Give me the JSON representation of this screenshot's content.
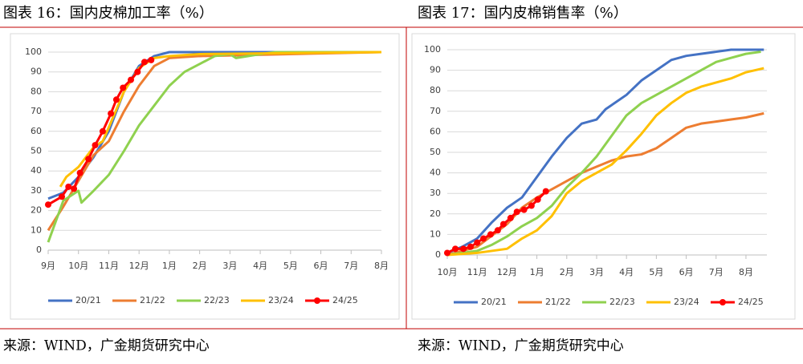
{
  "chart_data": [
    {
      "type": "line",
      "title": "图表 16：国内皮棉加工率（%）",
      "source": "来源：WIND，广金期货研究中心",
      "xlim": [
        0,
        11
      ],
      "ylim": [
        0,
        100
      ],
      "xticks": [
        {
          "value": 0,
          "label": "9月"
        },
        {
          "value": 1,
          "label": "10月"
        },
        {
          "value": 2,
          "label": "11月"
        },
        {
          "value": 3,
          "label": "12月"
        },
        {
          "value": 4,
          "label": "1月"
        },
        {
          "value": 5,
          "label": "2月"
        },
        {
          "value": 6,
          "label": "3月"
        },
        {
          "value": 7,
          "label": "4月"
        },
        {
          "value": 8,
          "label": "5月"
        },
        {
          "value": 9,
          "label": "6月"
        },
        {
          "value": 10,
          "label": "7月"
        },
        {
          "value": 11,
          "label": "8月"
        }
      ],
      "yticks": [
        0,
        10,
        20,
        30,
        40,
        50,
        60,
        70,
        80,
        90,
        100
      ],
      "grid": true,
      "series": [
        {
          "name": "20/21",
          "color": "#4472c4",
          "x": [
            0,
            0.5,
            1,
            1.5,
            2,
            2.5,
            3,
            3.5,
            4,
            11
          ],
          "values": [
            26,
            29,
            37,
            47,
            60,
            80,
            93,
            98,
            100,
            100
          ]
        },
        {
          "name": "21/22",
          "color": "#ed7d31",
          "x": [
            0,
            0.5,
            1,
            1.5,
            2,
            2.5,
            3,
            3.5,
            4,
            5,
            11
          ],
          "values": [
            10,
            22,
            35,
            48,
            55,
            70,
            83,
            93,
            97,
            98,
            100
          ]
        },
        {
          "name": "22/23",
          "color": "#8fd14f",
          "x": [
            0,
            0.5,
            1,
            1.1,
            1.5,
            2,
            2.5,
            3,
            3.5,
            4,
            4.5,
            5,
            5.5,
            6,
            6.2,
            7,
            7.5,
            11
          ],
          "values": [
            4,
            25,
            30,
            24,
            30,
            38,
            50,
            63,
            73,
            83,
            90,
            94,
            98,
            99,
            97,
            99,
            100,
            100
          ]
        },
        {
          "name": "23/24",
          "color": "#ffc000",
          "x": [
            0.4,
            0.6,
            1,
            1.5,
            1.8,
            2,
            2.5,
            3,
            3.5,
            4,
            5,
            11
          ],
          "values": [
            32,
            37,
            42,
            52,
            55,
            62,
            80,
            92,
            97,
            98,
            99,
            100
          ]
        },
        {
          "name": "24/25",
          "color": "#ff0000",
          "markers": true,
          "x": [
            0,
            0.45,
            0.67,
            0.85,
            1.05,
            1.33,
            1.55,
            1.8,
            2.07,
            2.25,
            2.47,
            2.73,
            2.95,
            3.18,
            3.4
          ],
          "values": [
            23,
            27,
            32,
            31,
            39,
            46,
            53,
            60,
            69,
            76,
            82,
            86,
            90,
            95,
            96
          ]
        }
      ]
    },
    {
      "type": "line",
      "title": "图表 17：国内皮棉销售率（%）",
      "source": "来源：WIND，广金期货研究中心",
      "xlim": [
        0,
        10.7
      ],
      "ylim": [
        0,
        100
      ],
      "xticks": [
        {
          "value": 0,
          "label": "10月"
        },
        {
          "value": 1,
          "label": "11月"
        },
        {
          "value": 2,
          "label": "12月"
        },
        {
          "value": 3,
          "label": "1月"
        },
        {
          "value": 4,
          "label": "2月"
        },
        {
          "value": 5,
          "label": "3月"
        },
        {
          "value": 6,
          "label": "4月"
        },
        {
          "value": 7,
          "label": "5月"
        },
        {
          "value": 8,
          "label": "6月"
        },
        {
          "value": 9,
          "label": "7月"
        },
        {
          "value": 10,
          "label": "8月"
        }
      ],
      "yticks": [
        0,
        10,
        20,
        30,
        40,
        50,
        60,
        70,
        80,
        90,
        100
      ],
      "grid": true,
      "series": [
        {
          "name": "20/21",
          "color": "#4472c4",
          "x": [
            0,
            0.5,
            1,
            1.5,
            2,
            2.5,
            3,
            3.5,
            4,
            4.5,
            5,
            5.3,
            6,
            6.5,
            7,
            7.5,
            8,
            8.5,
            9,
            9.5,
            10.6
          ],
          "values": [
            1,
            4,
            8,
            16,
            23,
            28,
            38,
            48,
            57,
            64,
            66,
            71,
            78,
            85,
            90,
            95,
            97,
            98,
            99,
            100,
            100
          ]
        },
        {
          "name": "21/22",
          "color": "#ed7d31",
          "x": [
            0,
            1,
            2,
            2.5,
            3,
            3.5,
            4,
            4.5,
            5,
            5.5,
            6,
            6.5,
            7,
            7.5,
            8,
            8.5,
            9,
            9.5,
            10,
            10.6
          ],
          "values": [
            0,
            4,
            15,
            23,
            28,
            32,
            36,
            40,
            43,
            46,
            48,
            49,
            52,
            57,
            62,
            64,
            65,
            66,
            67,
            69
          ]
        },
        {
          "name": "22/23",
          "color": "#8fd14f",
          "x": [
            0,
            1,
            1.5,
            2,
            2.5,
            3,
            3.5,
            4,
            4.5,
            5,
            5.5,
            6,
            6.5,
            7,
            7.5,
            8,
            8.5,
            9,
            9.5,
            10,
            10.5
          ],
          "values": [
            0,
            2,
            5,
            9,
            14,
            18,
            24,
            33,
            40,
            48,
            58,
            68,
            74,
            78,
            82,
            86,
            90,
            94,
            96,
            98,
            99
          ]
        },
        {
          "name": "23/24",
          "color": "#ffc000",
          "x": [
            0,
            1,
            2,
            2.5,
            3,
            3.5,
            4,
            4.5,
            5,
            5.5,
            6,
            6.5,
            7,
            7.5,
            8,
            8.5,
            9,
            9.5,
            10,
            10.6
          ],
          "values": [
            0,
            1,
            3,
            8,
            12,
            19,
            30,
            36,
            40,
            44,
            51,
            59,
            68,
            74,
            79,
            82,
            84,
            86,
            89,
            91
          ]
        },
        {
          "name": "24/25",
          "color": "#ff0000",
          "markers": true,
          "x": [
            0,
            0.27,
            0.54,
            0.78,
            1,
            1.21,
            1.45,
            1.69,
            1.88,
            2.12,
            2.33,
            2.57,
            2.82,
            3.03,
            3.3
          ],
          "values": [
            1,
            3,
            3,
            4,
            6,
            8,
            10,
            12,
            15,
            18,
            21,
            22,
            24,
            27,
            31
          ]
        }
      ]
    }
  ]
}
